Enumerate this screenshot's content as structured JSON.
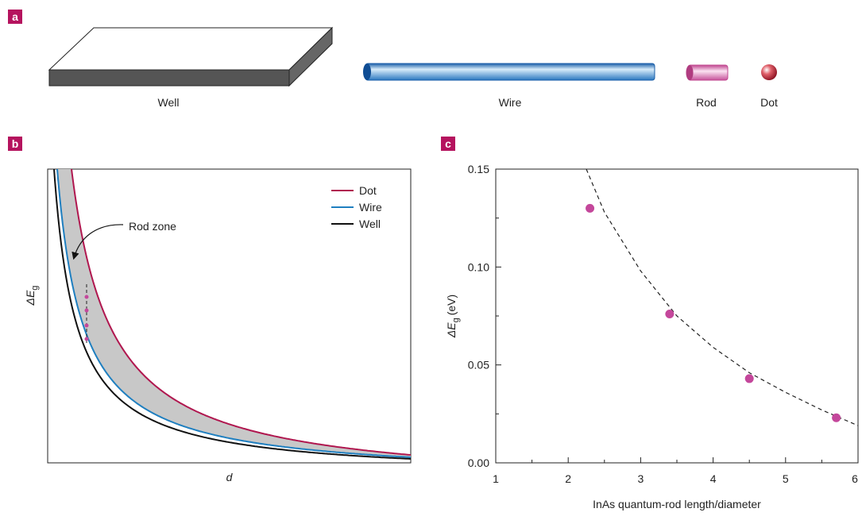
{
  "panel_a": {
    "letter": "a",
    "labels": [
      "Well",
      "Wire",
      "Rod",
      "Dot"
    ]
  },
  "chart_data": [
    {
      "type": "schematic",
      "letter": "b",
      "xlabel": "d",
      "ylabel": {
        "symbol": "ΔE",
        "subscript": "g"
      },
      "annotation": "Rod zone",
      "series": [
        {
          "name": "Dot",
          "color": "#b0174f"
        },
        {
          "name": "Wire",
          "color": "#1f7fc0"
        },
        {
          "name": "Well",
          "color": "#111111"
        }
      ],
      "fill_color": "#c8c8c8"
    },
    {
      "type": "scatter",
      "letter": "c",
      "xlabel": "InAs quantum-rod length/diameter",
      "ylabel": {
        "symbol": "ΔE",
        "subscript": "g",
        "unit": "(eV)"
      },
      "x": [
        2.3,
        3.4,
        4.5,
        5.7
      ],
      "values": [
        0.13,
        0.076,
        0.043,
        0.023
      ],
      "color": "#c4479b",
      "fit": {
        "x": [
          2.25,
          2.5,
          3,
          3.5,
          4,
          4.5,
          5,
          5.5,
          6
        ],
        "values": [
          0.15,
          0.128,
          0.098,
          0.075,
          0.059,
          0.046,
          0.036,
          0.027,
          0.019
        ]
      },
      "xlim": [
        1,
        6
      ],
      "ylim": [
        0,
        0.15
      ],
      "xticks": [
        1,
        2,
        3,
        4,
        5,
        6
      ],
      "yticks": [
        {
          "value": 0,
          "label": "0.00"
        },
        {
          "value": 0.05,
          "label": "0.05"
        },
        {
          "value": 0.1,
          "label": "0.10"
        },
        {
          "value": 0.15,
          "label": "0.15"
        }
      ],
      "xminorticks": [
        1.5,
        2.5,
        3.5,
        4.5,
        5.5
      ],
      "yminorticks": [
        0.025,
        0.075,
        0.125
      ]
    }
  ]
}
